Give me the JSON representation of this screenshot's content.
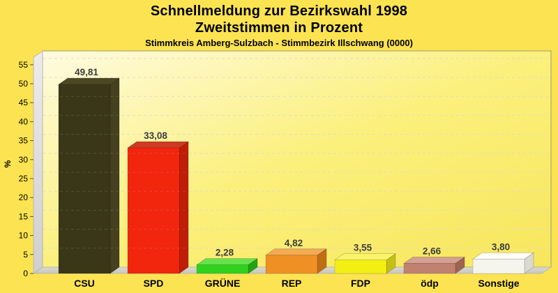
{
  "title": {
    "line1": "Schnellmeldung zur Bezirkswahl 1998",
    "line2": "Zweitstimmen in Prozent",
    "subtitle": "Stimmkreis Amberg-Sulzbach - Stimmbezirk Illschwang (0000)"
  },
  "colors": {
    "background": "#fce351",
    "plot_wall_light": "#fffbe0",
    "plot_wall_mid": "#fbf07c",
    "plot_wall_deep": "#f7e65c",
    "side_wall_gray": "#dcdcdc",
    "floor_gray": "#d0d0c8",
    "gridline": "#d6d6c8",
    "wall_border": "#9d9d6e",
    "value_label": "#3c3c3c",
    "text": "#000000"
  },
  "chart_data": {
    "type": "bar",
    "style": "3d-columns",
    "title": "Schnellmeldung zur Bezirkswahl 1998 — Zweitstimmen in Prozent",
    "subtitle": "Stimmkreis Amberg-Sulzbach - Stimmbezirk Illschwang (0000)",
    "xlabel": "",
    "ylabel": "%",
    "ylim": [
      0,
      57
    ],
    "yticks": [
      0,
      5,
      10,
      15,
      20,
      25,
      30,
      35,
      40,
      45,
      50,
      55
    ],
    "grid": "horizontal-dashed",
    "legend_position": "none",
    "categories": [
      "CSU",
      "SPD",
      "GRÜNE",
      "REP",
      "FDP",
      "ödp",
      "Sonstige"
    ],
    "values": [
      49.81,
      33.08,
      2.28,
      4.82,
      3.55,
      2.66,
      3.8
    ],
    "value_labels": [
      "49,81",
      "33,08",
      "2,28",
      "4,82",
      "3,55",
      "2,66",
      "3,80"
    ],
    "bar_colors": [
      {
        "party": "CSU",
        "front": "#3a3618",
        "top": "#4e4822",
        "side": "#454020"
      },
      {
        "party": "SPD",
        "front": "#f1260d",
        "top": "#ce3b22",
        "side": "#bf1d06"
      },
      {
        "party": "GRÜNE",
        "front": "#2fd11c",
        "top": "#66e24c",
        "side": "#22a411"
      },
      {
        "party": "REP",
        "front": "#ef9024",
        "top": "#f5ab52",
        "side": "#c06e14"
      },
      {
        "party": "FDP",
        "front": "#f4ef12",
        "top": "#f9f46a",
        "side": "#c5c016"
      },
      {
        "party": "ödp",
        "front": "#c08170",
        "top": "#d4a090",
        "side": "#9f6250"
      },
      {
        "party": "Sonstige",
        "front": "#f5f5ee",
        "top": "#fdfdf9",
        "side": "#d9d9cf"
      }
    ]
  }
}
